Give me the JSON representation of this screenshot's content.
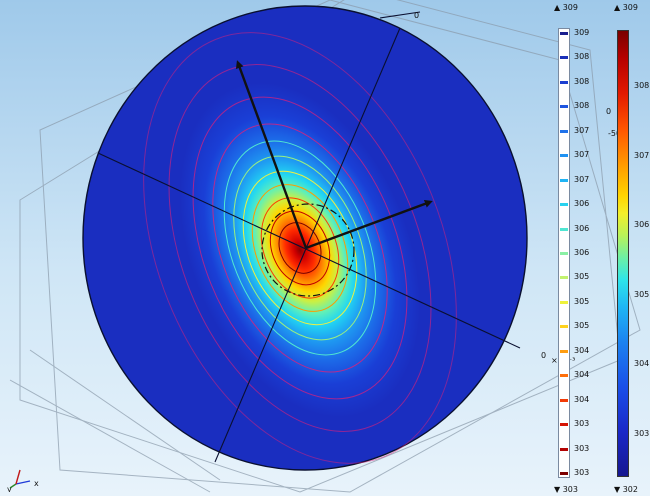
{
  "graphics": {
    "contour_legend": {
      "max_label": "▲ 309",
      "min_label": "▼ 303",
      "levels": [
        {
          "label": "309",
          "color": "#1a1f8f"
        },
        {
          "label": "308",
          "color": "#1a2fb8"
        },
        {
          "label": "308",
          "color": "#1c3fd0"
        },
        {
          "label": "308",
          "color": "#1e55e0"
        },
        {
          "label": "307",
          "color": "#1f72ea"
        },
        {
          "label": "307",
          "color": "#1f92f2"
        },
        {
          "label": "307",
          "color": "#20b4f4"
        },
        {
          "label": "306",
          "color": "#28d2ef"
        },
        {
          "label": "306",
          "color": "#4fe6d2"
        },
        {
          "label": "306",
          "color": "#8af0a5"
        },
        {
          "label": "305",
          "color": "#c2f26e"
        },
        {
          "label": "305",
          "color": "#eef23b"
        },
        {
          "label": "305",
          "color": "#ffd21e"
        },
        {
          "label": "304",
          "color": "#ff9d10"
        },
        {
          "label": "304",
          "color": "#ff6f0a"
        },
        {
          "label": "304",
          "color": "#f23a06"
        },
        {
          "label": "303",
          "color": "#d51404"
        },
        {
          "label": "303",
          "color": "#b30202"
        },
        {
          "label": "303",
          "color": "#7d0000"
        }
      ]
    },
    "surface_legend": {
      "max_label": "▲ 309",
      "min_label": "▼ 302",
      "ticks": [
        "308",
        "307",
        "306",
        "305",
        "304",
        "303"
      ]
    },
    "overlay": {
      "axis_zero_top": "0",
      "axis_zero_right": "0",
      "axis_zero_mid": "0",
      "minus_fifty": "-50",
      "scale_exponent": "×10⁻³"
    },
    "axis_triad": {
      "y_label": "y",
      "x_label": "x"
    }
  }
}
